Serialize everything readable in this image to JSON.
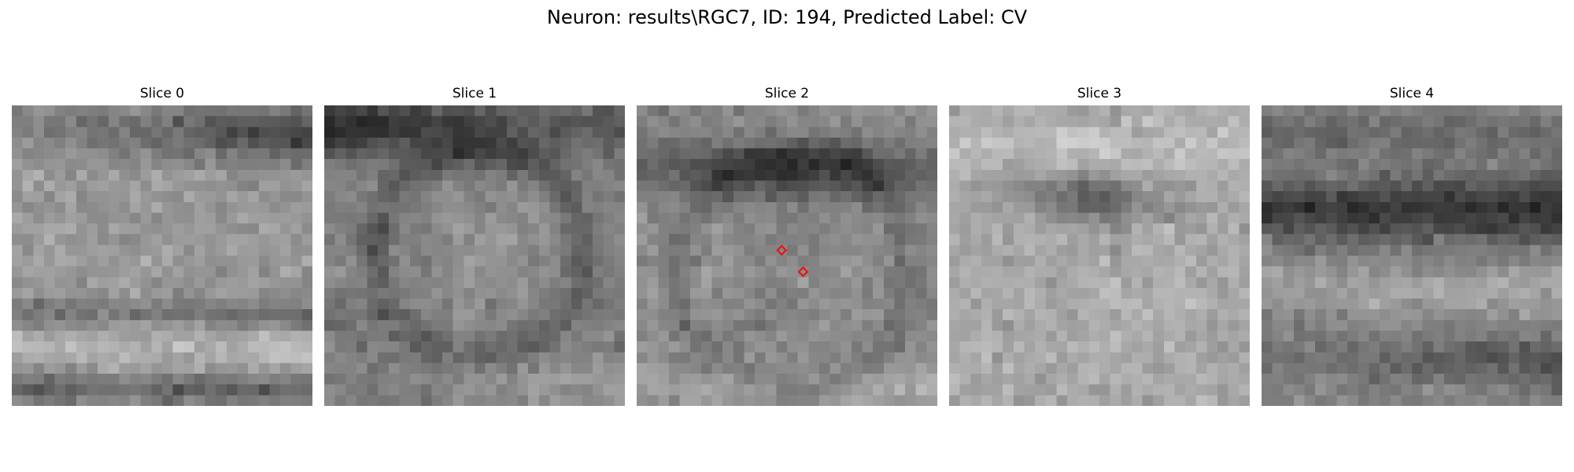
{
  "figure": {
    "title": "Neuron: results\\RGC7, ID: 194, Predicted Label: CV"
  },
  "slices": [
    {
      "title": "Slice 0",
      "pattern": "slice0",
      "seed": 11
    },
    {
      "title": "Slice 1",
      "pattern": "slice1",
      "seed": 23
    },
    {
      "title": "Slice 2",
      "pattern": "slice2",
      "seed": 37
    },
    {
      "title": "Slice 3",
      "pattern": "slice3",
      "seed": 51
    },
    {
      "title": "Slice 4",
      "pattern": "slice4",
      "seed": 67
    }
  ],
  "image_grid": {
    "rows": 28,
    "cols": 28,
    "colormap": "gray"
  },
  "markers": {
    "slice_index": 2,
    "shape": "diamond",
    "color": "#e8141a",
    "points": [
      {
        "col": 13,
        "row": 13
      },
      {
        "col": 15,
        "row": 15
      }
    ]
  }
}
